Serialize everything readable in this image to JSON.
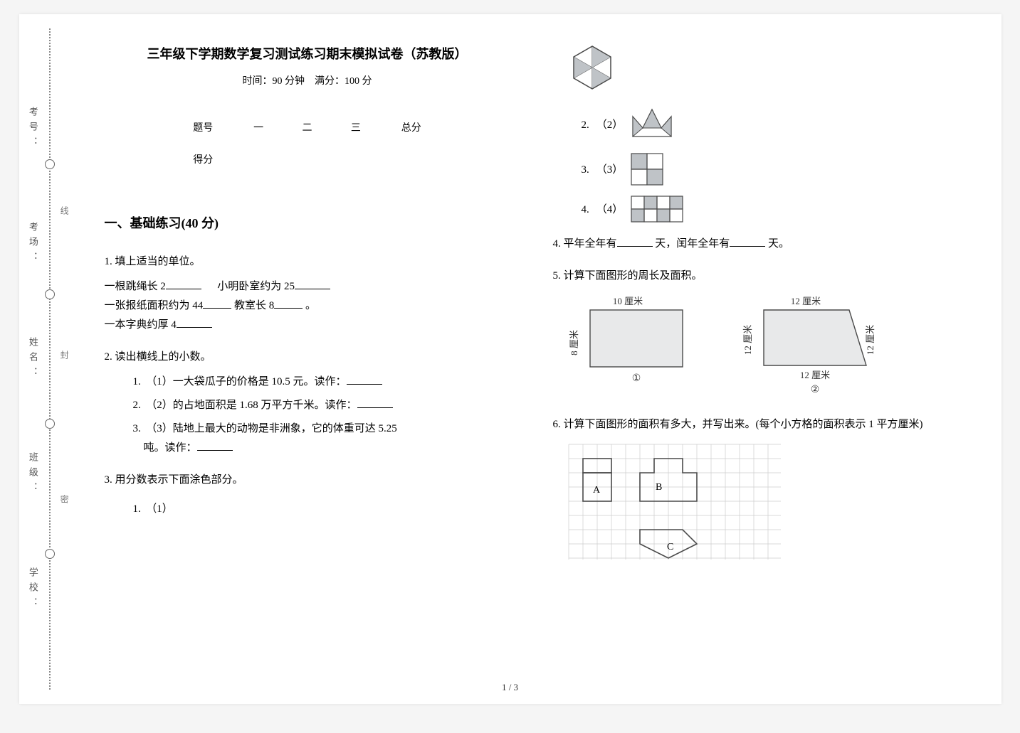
{
  "header": {
    "title": "三年级下学期数学复习测试练习期末模拟试卷（苏教版）",
    "time_label": "时间：90 分钟",
    "score_label": "满分：100 分"
  },
  "binding": {
    "labels": [
      "考号：",
      "考场：",
      "姓名：",
      "班级：",
      "学校："
    ],
    "seal": [
      "线",
      "封",
      "密"
    ]
  },
  "score_table": {
    "row_headers": [
      "题号",
      "得分"
    ],
    "cols": [
      "一",
      "二",
      "三",
      "总分"
    ]
  },
  "section1": {
    "heading": "一、基础练习(40 分)"
  },
  "q1": {
    "stem": "1. 填上适当的单位。",
    "lines": {
      "a_pre": "一根跳绳长 2",
      "a_post": "小明卧室约为 25",
      "b_pre": "一张报纸面积约为 44",
      "b_mid": "教室长 8",
      "b_end": "。",
      "c_pre": "一本字典约厚 4"
    }
  },
  "q2": {
    "stem": "2. 读出横线上的小数。",
    "items": [
      {
        "n": "1.",
        "text_a": "（1）一大袋瓜子的价格是 10.5 元。读作："
      },
      {
        "n": "2.",
        "text_a": "（2）的占地面积是 1.68 万平方千米。读作："
      },
      {
        "n": "3.",
        "text_a": "（3）陆地上最大的动物是非洲象，它的体重可达 5.25",
        "text_b": "吨。读作："
      }
    ]
  },
  "q3": {
    "stem": "3. 用分数表示下面涂色部分。",
    "items": [
      {
        "n": "1.",
        "label": "（1）"
      },
      {
        "n": "2.",
        "label": "（2）"
      },
      {
        "n": "3.",
        "label": "（3）"
      },
      {
        "n": "4.",
        "label": "（4）"
      }
    ]
  },
  "q4": {
    "pre": "4. 平年全年有",
    "mid": "天，闰年全年有",
    "post": "天。"
  },
  "q5": {
    "stem": "5. 计算下面图形的周长及面积。",
    "fig1": {
      "top": "10 厘米",
      "left": "8 厘米",
      "num": "①"
    },
    "fig2": {
      "top": "12 厘米",
      "left": "12 厘米",
      "right": "12 厘米",
      "bottom": "12 厘米",
      "num": "②"
    }
  },
  "q6": {
    "stem": "6. 计算下面图形的面积有多大，并写出来。(每个小方格的面积表示 1 平方厘米)",
    "labels": {
      "a": "A",
      "b": "B",
      "c": "C"
    }
  },
  "page_num": "1 / 3",
  "colors": {
    "paper": "#ffffff",
    "shade": "#bfc3c7",
    "shade_dark": "#a8acb0",
    "line": "#4a4a4a",
    "light_line": "#999"
  }
}
